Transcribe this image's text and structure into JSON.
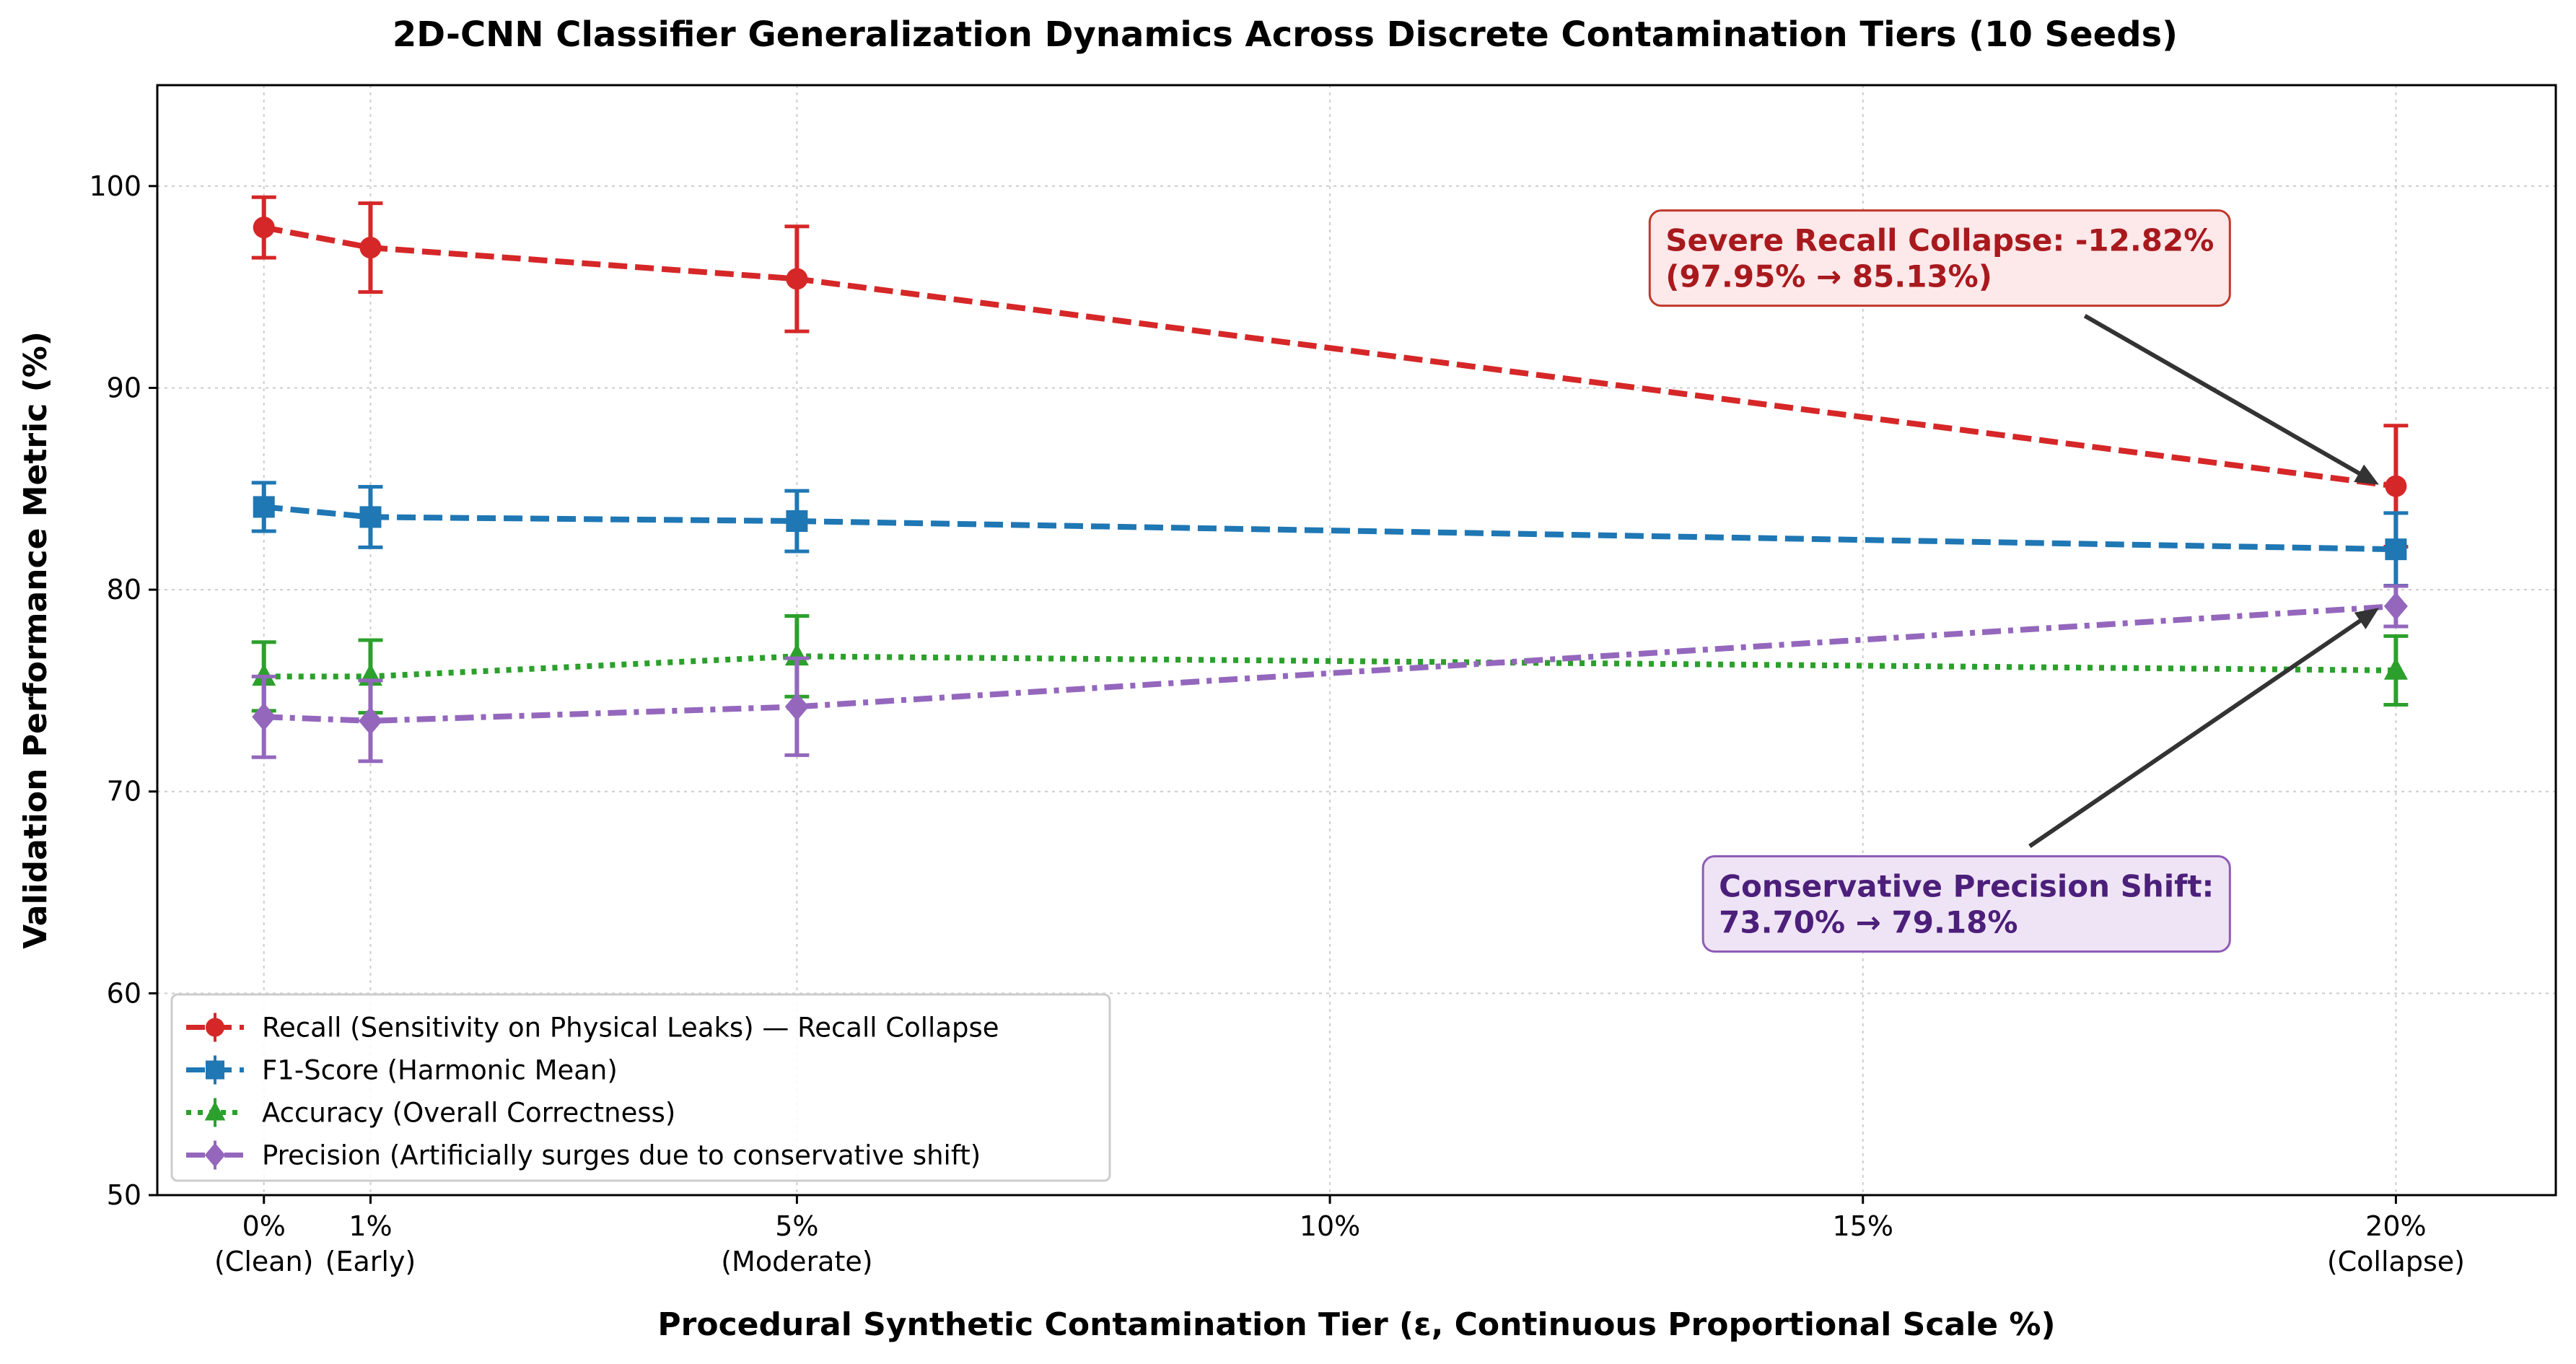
{
  "chart_data": {
    "type": "line",
    "title": "2D-CNN Classifier Generalization Dynamics Across Discrete Contamination Tiers (10 Seeds)",
    "xlabel": "Procedural Synthetic Contamination Tier (ε, Continuous Proportional Scale %)",
    "ylabel": "Validation Performance Metric (%)",
    "xlim": [
      -1,
      21.5
    ],
    "ylim": [
      50,
      105
    ],
    "grid": true,
    "legend_position": "lower-left",
    "x_ticks": [
      {
        "value": 0,
        "label": "0%",
        "sublabel": "(Clean)"
      },
      {
        "value": 1,
        "label": "1%",
        "sublabel": "(Early)"
      },
      {
        "value": 5,
        "label": "5%",
        "sublabel": "(Moderate)"
      },
      {
        "value": 10,
        "label": "10%",
        "sublabel": ""
      },
      {
        "value": 15,
        "label": "15%",
        "sublabel": ""
      },
      {
        "value": 20,
        "label": "20%",
        "sublabel": "(Collapse)"
      }
    ],
    "y_ticks": [
      50,
      60,
      70,
      80,
      90,
      100
    ],
    "x": [
      0,
      1,
      5,
      20
    ],
    "series": [
      {
        "name": "Recall (Sensitivity on Physical Leaks) — Recall Collapse",
        "values": [
          97.95,
          96.95,
          95.4,
          85.13
        ],
        "errors": [
          1.5,
          2.2,
          2.6,
          3.0
        ],
        "color": "#d62728",
        "marker": "circle",
        "dash": "dashed"
      },
      {
        "name": "F1-Score (Harmonic Mean)",
        "values": [
          84.1,
          83.6,
          83.4,
          82.0
        ],
        "errors": [
          1.2,
          1.5,
          1.5,
          1.8
        ],
        "color": "#1f77b4",
        "marker": "square",
        "dash": "dashed"
      },
      {
        "name": "Accuracy (Overall Correctness)",
        "values": [
          75.7,
          75.7,
          76.7,
          76.0
        ],
        "errors": [
          1.7,
          1.8,
          2.0,
          1.7
        ],
        "color": "#2ca02c",
        "marker": "triangle",
        "dash": "dotted"
      },
      {
        "name": "Precision (Artificially surges due to conservative shift)",
        "values": [
          73.7,
          73.5,
          74.2,
          79.18
        ],
        "errors": [
          2.0,
          2.0,
          2.4,
          1.0
        ],
        "color": "#9467bd",
        "marker": "diamond",
        "dash": "dashdot"
      }
    ],
    "annotations": [
      {
        "lines": [
          "Severe Recall Collapse: -12.82%",
          "(97.95% → 85.13%)"
        ],
        "text_color": "#a8191d",
        "box_fill": "#fde8ea",
        "box_edge": "#c0392b",
        "point": [
          20,
          85.13
        ],
        "text_anchor_point": [
          13.0,
          95.5
        ]
      },
      {
        "lines": [
          "Conservative Precision Shift:",
          "73.70% → 79.18%"
        ],
        "text_color": "#4b1f7a",
        "box_fill": "#efe4f5",
        "box_edge": "#8e5cb5",
        "point": [
          20,
          79.18
        ],
        "text_anchor_point": [
          13.5,
          63.5
        ]
      }
    ]
  }
}
